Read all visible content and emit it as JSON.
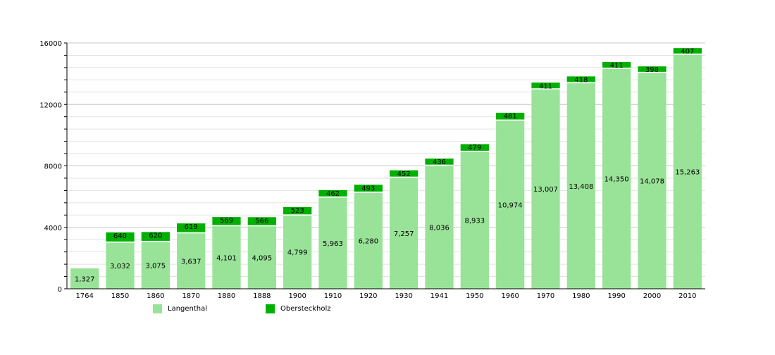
{
  "chart_data": {
    "type": "bar",
    "stacked": true,
    "categories": [
      "1764",
      "1850",
      "1860",
      "1870",
      "1880",
      "1888",
      "1900",
      "1910",
      "1920",
      "1930",
      "1941",
      "1950",
      "1960",
      "1970",
      "1980",
      "1990",
      "2000",
      "2010"
    ],
    "series": [
      {
        "name": "Langenthal",
        "color": "#99e399",
        "values": [
          1327,
          3032,
          3075,
          3637,
          4101,
          4095,
          4799,
          5963,
          6280,
          7257,
          8036,
          8933,
          10974,
          13007,
          13408,
          14350,
          14078,
          15263
        ],
        "labels": [
          "1,327",
          "3,032",
          "3,075",
          "3,637",
          "4,101",
          "4,095",
          "4,799",
          "5,963",
          "6,280",
          "7,257",
          "8,036",
          "8,933",
          "10,974",
          "13,007",
          "13,408",
          "14,350",
          "14,078",
          "15,263"
        ]
      },
      {
        "name": "Obersteckholz",
        "color": "#00b000",
        "values": [
          null,
          640,
          620,
          619,
          569,
          566,
          523,
          462,
          493,
          452,
          436,
          479,
          481,
          411,
          418,
          411,
          398,
          407
        ]
      }
    ],
    "ylim": [
      0,
      16000
    ],
    "yticks": [
      0,
      4000,
      8000,
      12000,
      16000
    ],
    "minor_grid_step": 800,
    "grid": true,
    "legend": "bottom"
  }
}
